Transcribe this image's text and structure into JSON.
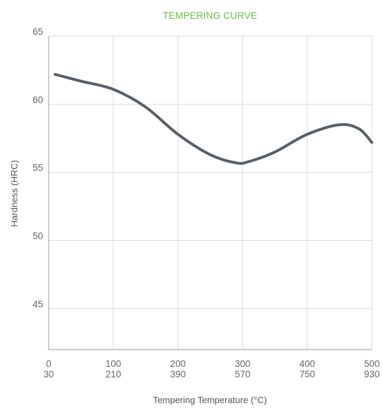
{
  "chart_data": {
    "type": "line",
    "title": "TEMPERING CURVE",
    "xlabel": "Tempering Temperature (°C)",
    "ylabel": "Hardness (HRC)",
    "xlim": [
      0,
      500
    ],
    "ylim": [
      42,
      65
    ],
    "x_ticks": [
      0,
      100,
      200,
      300,
      400,
      500
    ],
    "x_tick_labels_top": [
      "0",
      "100",
      "200",
      "300",
      "400",
      "500"
    ],
    "x_tick_labels_bottom": [
      "30",
      "210",
      "390",
      "570",
      "750",
      "930"
    ],
    "y_ticks": [
      45,
      50,
      55,
      60,
      65
    ],
    "y_tick_labels": [
      "45",
      "50",
      "55",
      "60",
      "65"
    ],
    "grid": true,
    "series": [
      {
        "x": [
          10,
          50,
          100,
          150,
          200,
          250,
          290,
          310,
          350,
          400,
          450,
          480,
          500
        ],
        "y": [
          62.2,
          61.7,
          61.1,
          59.8,
          57.8,
          56.3,
          55.7,
          55.8,
          56.5,
          57.8,
          58.5,
          58.2,
          57.2
        ]
      }
    ],
    "colors": {
      "title": "#6abf4b",
      "line": "#595f66",
      "grid": "#d9d9d9",
      "axis": "#999999"
    }
  }
}
